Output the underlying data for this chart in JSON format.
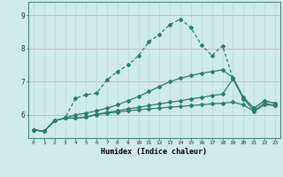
{
  "xlabel": "Humidex (Indice chaleur)",
  "bg_color": "#ceeaea",
  "line_color": "#2e7d6e",
  "grid_color_h": "#e8a0a0",
  "grid_color_v": "#b8d8d8",
  "xlim": [
    -0.5,
    23.5
  ],
  "ylim": [
    5.3,
    9.4
  ],
  "xticks": [
    0,
    1,
    2,
    3,
    4,
    5,
    6,
    7,
    8,
    9,
    10,
    11,
    12,
    13,
    14,
    15,
    16,
    17,
    18,
    19,
    20,
    21,
    22,
    23
  ],
  "yticks": [
    6,
    7,
    8,
    9
  ],
  "line1_x": [
    0,
    1,
    2,
    3,
    4,
    5,
    6,
    7,
    8,
    9,
    10,
    11,
    12,
    13,
    14,
    15,
    16,
    17,
    18,
    19,
    20,
    21,
    22,
    23
  ],
  "line1_y": [
    5.55,
    5.5,
    5.82,
    5.9,
    5.9,
    5.93,
    6.0,
    6.05,
    6.08,
    6.12,
    6.15,
    6.18,
    6.2,
    6.23,
    6.25,
    6.28,
    6.3,
    6.33,
    6.35,
    6.38,
    6.3,
    6.1,
    6.3,
    6.28
  ],
  "line2_x": [
    0,
    1,
    2,
    3,
    4,
    5,
    6,
    7,
    8,
    9,
    10,
    11,
    12,
    13,
    14,
    15,
    16,
    17,
    18,
    19,
    20,
    21,
    22,
    23
  ],
  "line2_y": [
    5.55,
    5.5,
    5.82,
    5.9,
    5.9,
    5.93,
    6.02,
    6.07,
    6.12,
    6.18,
    6.22,
    6.28,
    6.33,
    6.38,
    6.42,
    6.48,
    6.52,
    6.58,
    6.62,
    7.08,
    6.48,
    6.12,
    6.35,
    6.28
  ],
  "line3_x": [
    0,
    1,
    2,
    3,
    4,
    5,
    6,
    7,
    8,
    9,
    10,
    11,
    12,
    13,
    14,
    15,
    16,
    17,
    18,
    19,
    20,
    21,
    22,
    23
  ],
  "line3_y": [
    5.55,
    5.5,
    5.82,
    5.9,
    6.0,
    6.05,
    6.12,
    6.2,
    6.3,
    6.42,
    6.55,
    6.7,
    6.85,
    7.0,
    7.1,
    7.18,
    7.25,
    7.3,
    7.35,
    7.12,
    6.52,
    6.2,
    6.42,
    6.35
  ],
  "line4_x": [
    0,
    1,
    2,
    3,
    4,
    5,
    6,
    7,
    8,
    9,
    10,
    11,
    12,
    13,
    14,
    15,
    16,
    17,
    18,
    19,
    20,
    21,
    22,
    23
  ],
  "line4_y": [
    5.55,
    5.5,
    5.82,
    5.9,
    6.5,
    6.6,
    6.65,
    7.05,
    7.3,
    7.5,
    7.78,
    8.2,
    8.42,
    8.72,
    8.88,
    8.62,
    8.1,
    7.78,
    8.08,
    7.1,
    6.52,
    6.2,
    6.42,
    6.35
  ],
  "marker": "D",
  "markersize": 2.0,
  "linewidth": 0.9
}
